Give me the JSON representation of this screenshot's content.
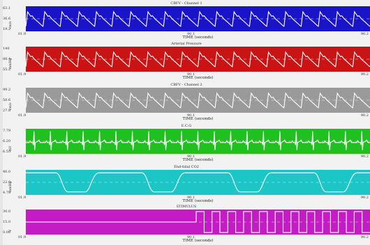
{
  "panels": [
    {
      "id": "cbfv1",
      "title": "CBFV - Channel 1",
      "y_ticks": [
        "63.1",
        "36.6",
        "19.2"
      ],
      "y_unit": "cm/s",
      "x_ticks": [
        "01.9",
        "90.1",
        "90.2"
      ],
      "x_title": "TIME (seconds)",
      "bg": "#1a14c8",
      "trace_color": "#ffffff",
      "waveform": "pulse",
      "cycles": 20
    },
    {
      "id": "abp",
      "title": "Arterial Pressure",
      "y_ticks": [
        "140",
        "88.4",
        "55.2"
      ],
      "y_unit": "mmHg",
      "x_ticks": [
        "01.9",
        "90.1",
        "90.2"
      ],
      "x_title": "TIME (seconds)",
      "bg": "#c81414",
      "trace_color": "#ffffff",
      "waveform": "pulse",
      "cycles": 20
    },
    {
      "id": "cbfv2",
      "title": "CBFV - Channel 2",
      "y_ticks": [
        "99.2",
        "58.6",
        "27.8"
      ],
      "y_unit": "cm/s",
      "x_ticks": [
        "01.9",
        "90.1",
        "90.2"
      ],
      "x_title": "TIME (seconds)",
      "bg": "#9a9a9a",
      "trace_color": "#ffffff",
      "waveform": "pulse",
      "cycles": 20
    },
    {
      "id": "ecg",
      "title": "E.C.G",
      "y_ticks": [
        "7.79",
        "6.20",
        "6.55"
      ],
      "y_unit": "mV",
      "x_ticks": [
        "01.9",
        "90.1",
        "90.2"
      ],
      "x_title": "TIME (seconds)",
      "bg": "#1fc01f",
      "trace_color": "#ffffff",
      "waveform": "ecg",
      "cycles": 21
    },
    {
      "id": "etco2",
      "title": "End-tidal CO2",
      "y_ticks": [
        "40.0",
        "22.0",
        "4.78"
      ],
      "y_unit": "mmHg",
      "x_ticks": [
        "01.9",
        "90.1",
        "90.2"
      ],
      "x_title": "TIME (seconds)",
      "bg": "#1cc6c6",
      "trace_color": "#ffffff",
      "waveform": "co2",
      "cycles": 4
    },
    {
      "id": "stim",
      "title": "STIMULUS",
      "y_ticks": [
        "30.0",
        "15.0",
        "0.00"
      ],
      "y_unit": "V",
      "x_ticks": [
        "01.9",
        "90.1",
        "90.2"
      ],
      "x_title": "TIME (seconds)",
      "bg": "#c41cc4",
      "trace_color": "#ffffff",
      "waveform": "stim",
      "cycles": 11
    }
  ]
}
